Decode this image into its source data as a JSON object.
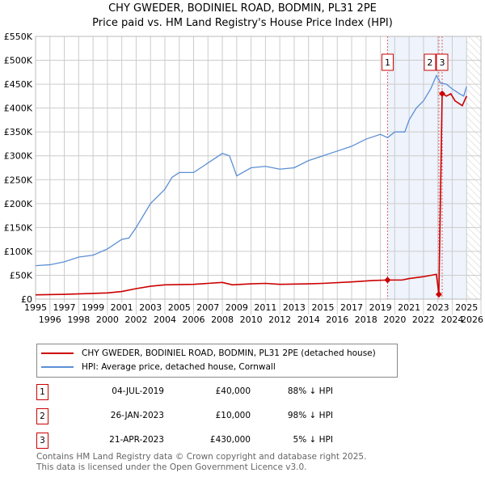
{
  "title": [
    "CHY GWEDER, BODINIEL ROAD, BODMIN, PL31 2PE",
    "Price paid vs. HM Land Registry's House Price Index (HPI)"
  ],
  "chart_data": {
    "type": "line",
    "title": "CHY GWEDER, BODINIEL ROAD, BODMIN, PL31 2PE — Price paid vs. HM Land Registry's House Price Index (HPI)",
    "xlim": [
      1995,
      2026
    ],
    "ylim": [
      0,
      550000
    ],
    "x_ticks": [
      "1995",
      "1996",
      "1997",
      "1998",
      "1999",
      "2000",
      "2001",
      "2002",
      "2003",
      "2004",
      "2005",
      "2006",
      "2007",
      "2008",
      "2009",
      "2010",
      "2011",
      "2012",
      "2013",
      "2014",
      "2015",
      "2016",
      "2017",
      "2018",
      "2019",
      "2020",
      "2021",
      "2022",
      "2023",
      "2024",
      "2025",
      "2026"
    ],
    "y_ticks": [
      {
        "v": 0,
        "label": "£0"
      },
      {
        "v": 50000,
        "label": "£50K"
      },
      {
        "v": 100000,
        "label": "£100K"
      },
      {
        "v": 150000,
        "label": "£150K"
      },
      {
        "v": 200000,
        "label": "£200K"
      },
      {
        "v": 250000,
        "label": "£250K"
      },
      {
        "v": 300000,
        "label": "£300K"
      },
      {
        "v": 350000,
        "label": "£350K"
      },
      {
        "v": 400000,
        "label": "£400K"
      },
      {
        "v": 450000,
        "label": "£450K"
      },
      {
        "v": 500000,
        "label": "£500K"
      },
      {
        "v": 550000,
        "label": "£550K"
      }
    ],
    "grid": true,
    "shaded_from": 2019.5,
    "hatched_from": 2025,
    "series": [
      {
        "name": "CHY GWEDER, BODINIEL ROAD, BODMIN, PL31 2PE (detached house)",
        "color": "#cc0000",
        "points": [
          [
            1995,
            9000
          ],
          [
            1997,
            10000
          ],
          [
            1999,
            12000
          ],
          [
            2000,
            13000
          ],
          [
            2001,
            16000
          ],
          [
            2002,
            22000
          ],
          [
            2003,
            27000
          ],
          [
            2004,
            30000
          ],
          [
            2006,
            31000
          ],
          [
            2007,
            33000
          ],
          [
            2008,
            35000
          ],
          [
            2008.7,
            30000
          ],
          [
            2010,
            32000
          ],
          [
            2011,
            33000
          ],
          [
            2012,
            31000
          ],
          [
            2014,
            32000
          ],
          [
            2015,
            33000
          ],
          [
            2017,
            36000
          ],
          [
            2018.5,
            39000
          ],
          [
            2019.5,
            40000
          ],
          [
            2020.5,
            40000
          ],
          [
            2021,
            43000
          ],
          [
            2022,
            47000
          ],
          [
            2022.9,
            52000
          ],
          [
            2023.07,
            10000
          ],
          [
            2023.3,
            430000
          ],
          [
            2023.6,
            425000
          ],
          [
            2023.9,
            430000
          ],
          [
            2024.2,
            415000
          ],
          [
            2024.7,
            405000
          ],
          [
            2025,
            425000
          ]
        ]
      },
      {
        "name": "HPI: Average price, detached house, Cornwall",
        "color": "#5b8fd4",
        "points": [
          [
            1995,
            70000
          ],
          [
            1996,
            72000
          ],
          [
            1997,
            78000
          ],
          [
            1998,
            88000
          ],
          [
            1999,
            92000
          ],
          [
            2000,
            105000
          ],
          [
            2001,
            125000
          ],
          [
            2001.5,
            128000
          ],
          [
            2002,
            150000
          ],
          [
            2003,
            200000
          ],
          [
            2004,
            230000
          ],
          [
            2004.5,
            255000
          ],
          [
            2005,
            265000
          ],
          [
            2006,
            265000
          ],
          [
            2007,
            285000
          ],
          [
            2008,
            305000
          ],
          [
            2008.5,
            300000
          ],
          [
            2009,
            258000
          ],
          [
            2010,
            275000
          ],
          [
            2011,
            278000
          ],
          [
            2012,
            272000
          ],
          [
            2013,
            275000
          ],
          [
            2014,
            290000
          ],
          [
            2015,
            300000
          ],
          [
            2016,
            310000
          ],
          [
            2017,
            320000
          ],
          [
            2018,
            335000
          ],
          [
            2019,
            345000
          ],
          [
            2019.5,
            338000
          ],
          [
            2020,
            350000
          ],
          [
            2020.7,
            350000
          ],
          [
            2021,
            375000
          ],
          [
            2021.5,
            400000
          ],
          [
            2022,
            415000
          ],
          [
            2022.5,
            440000
          ],
          [
            2022.9,
            468000
          ],
          [
            2023.2,
            452000
          ],
          [
            2023.6,
            450000
          ],
          [
            2024,
            440000
          ],
          [
            2024.5,
            430000
          ],
          [
            2024.8,
            425000
          ],
          [
            2025,
            445000
          ]
        ]
      }
    ],
    "markers": [
      {
        "label": "1",
        "x": 2019.5,
        "y": 40000
      },
      {
        "label": "2",
        "x": 2023.07,
        "y": 10000
      },
      {
        "label": "3",
        "x": 2023.3,
        "y": 430000
      }
    ]
  },
  "legend": [
    "CHY GWEDER, BODINIEL ROAD, BODMIN, PL31 2PE (detached house)",
    "HPI: Average price, detached house, Cornwall"
  ],
  "transactions": [
    {
      "num": "1",
      "date": "04-JUL-2019",
      "price": "£40,000",
      "hpi": "88% ↓ HPI"
    },
    {
      "num": "2",
      "date": "26-JAN-2023",
      "price": "£10,000",
      "hpi": "98% ↓ HPI"
    },
    {
      "num": "3",
      "date": "21-APR-2023",
      "price": "£430,000",
      "hpi": "5% ↓ HPI"
    }
  ],
  "footer": [
    "Contains HM Land Registry data © Crown copyright and database right 2025.",
    "This data is licensed under the Open Government Licence v3.0."
  ]
}
